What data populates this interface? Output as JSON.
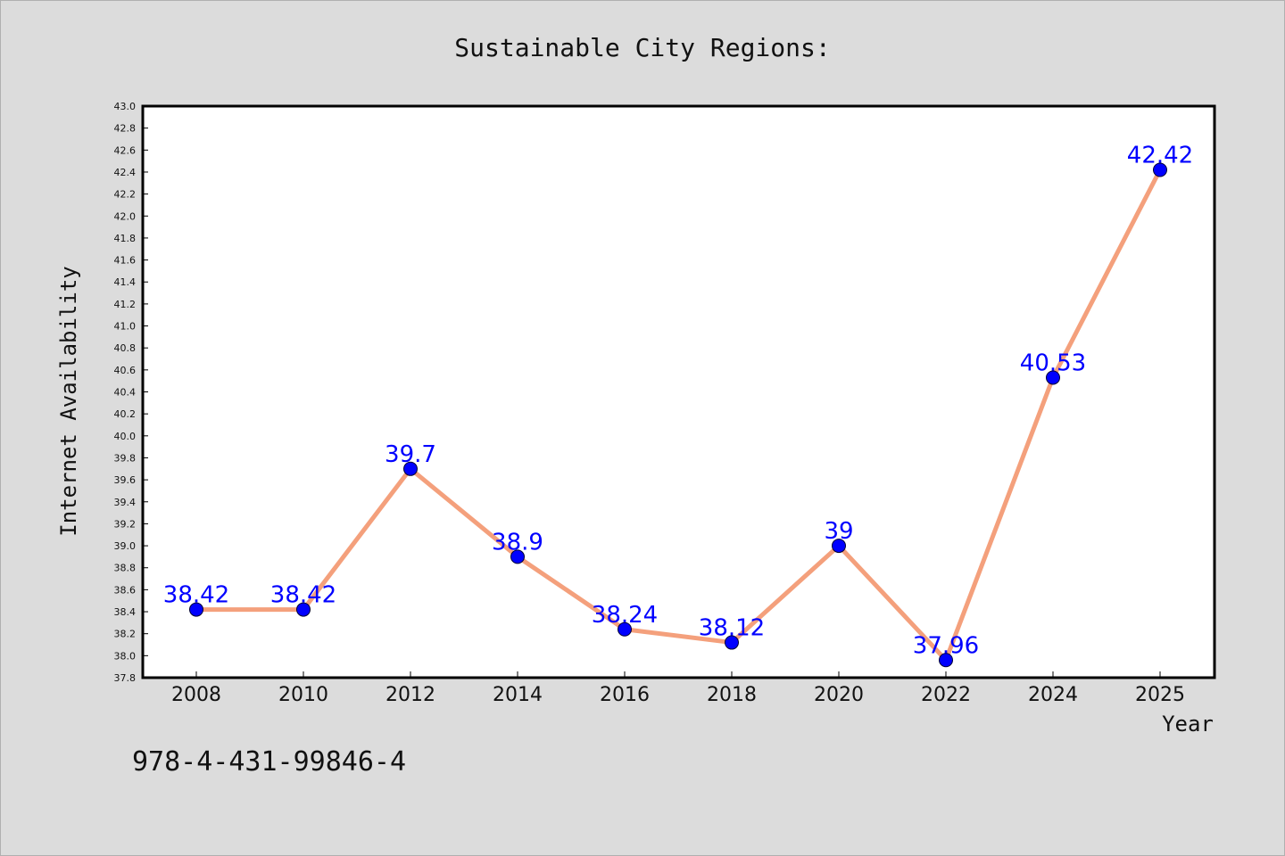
{
  "chart_data": {
    "type": "line",
    "title": "Sustainable City Regions:",
    "xlabel": "Year",
    "ylabel": "Internet Availability",
    "categories": [
      "2008",
      "2010",
      "2012",
      "2014",
      "2016",
      "2018",
      "2020",
      "2022",
      "2024",
      "2025"
    ],
    "series": [
      {
        "values": [
          38.42,
          38.42,
          39.7,
          38.9,
          38.24,
          38.12,
          39,
          37.96,
          40.53,
          42.42
        ],
        "labels": [
          "38.42",
          "38.42",
          "39.7",
          "38.9",
          "38.24",
          "38.12",
          "39",
          "37.96",
          "40.53",
          "42.42"
        ]
      }
    ],
    "ylim": [
      37.8,
      43.0
    ],
    "ytick_step": 0.2,
    "grid": false,
    "legend": "none",
    "colors": {
      "line": "#f4a07c",
      "marker": "#0000ff",
      "data_label": "#0000ff",
      "plot_background": "#ffffff",
      "figure_background": "#dcdcdc"
    }
  },
  "footer": {
    "code": "978-4-431-99846-4"
  }
}
